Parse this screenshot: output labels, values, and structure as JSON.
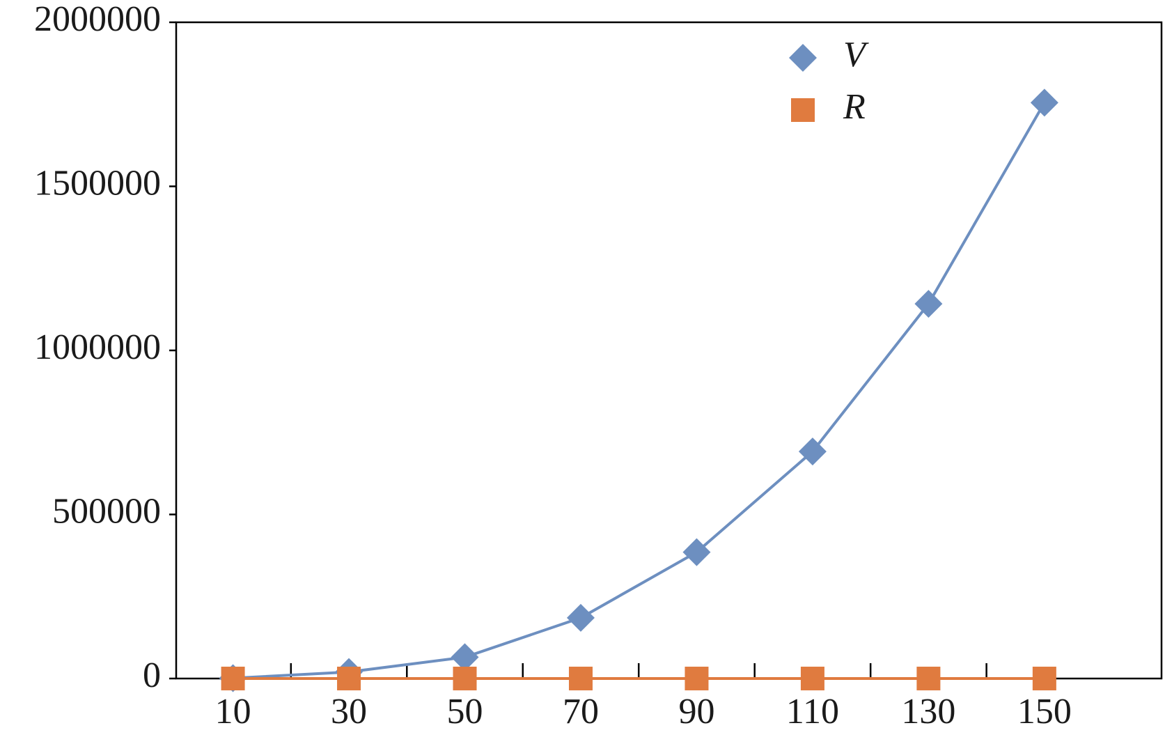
{
  "chart_data": {
    "type": "line",
    "categories": [
      "10",
      "30",
      "50",
      "70",
      "90",
      "110",
      "130",
      "150"
    ],
    "series": [
      {
        "name": "V",
        "color": "#6d8fc0",
        "marker": "diamond",
        "values": [
          1000,
          20000,
          65000,
          185000,
          385000,
          692000,
          1142000,
          1755000
        ]
      },
      {
        "name": "R",
        "color": "#e07b3f",
        "marker": "square",
        "values": [
          0,
          0,
          0,
          0,
          0,
          0,
          0,
          0
        ]
      }
    ],
    "ylim": [
      0,
      2000000
    ],
    "yticks": [
      0,
      500000,
      1000000,
      1500000,
      2000000
    ],
    "grid": false,
    "legend": "top-right"
  }
}
